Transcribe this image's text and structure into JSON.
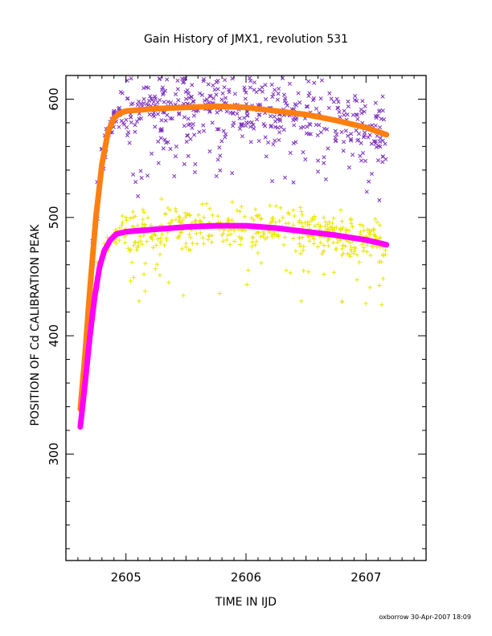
{
  "chart_data": {
    "type": "scatter",
    "title": "Gain History of JMX1, revolution 531",
    "xlabel": "TIME IN IJD",
    "ylabel": "POSITION OF Cd CALIBRATION PEAK",
    "xlim": [
      2604.5,
      2607.5
    ],
    "ylim": [
      210,
      620
    ],
    "xticks": [
      2605,
      2606,
      2607
    ],
    "yticks": [
      300,
      400,
      500,
      600
    ],
    "grid": false,
    "footer": "oxborrow 30-Apr-2007 18:09",
    "series": [
      {
        "marker": "x",
        "color": "#7b2fbe",
        "role": "measurements",
        "x_range": [
          2604.62,
          2607.17
        ],
        "plateau": 590,
        "spread": 14,
        "points": [
          [
            2604.64,
            362
          ],
          [
            2604.68,
            420
          ],
          [
            2604.72,
            480
          ],
          [
            2604.76,
            530
          ],
          [
            2604.8,
            558
          ],
          [
            2604.85,
            575
          ],
          [
            2604.9,
            588
          ],
          [
            2604.97,
            605
          ],
          [
            2605.02,
            572
          ],
          [
            2605.08,
            530
          ],
          [
            2605.1,
            518
          ],
          [
            2605.15,
            600
          ],
          [
            2605.3,
            608
          ],
          [
            2605.42,
            560
          ],
          [
            2605.55,
            612
          ],
          [
            2605.7,
            590
          ],
          [
            2605.82,
            610
          ],
          [
            2605.95,
            575
          ],
          [
            2606.1,
            595
          ],
          [
            2606.22,
            602
          ],
          [
            2606.4,
            578
          ],
          [
            2606.52,
            615
          ],
          [
            2606.6,
            548
          ],
          [
            2606.75,
            565
          ],
          [
            2606.85,
            598
          ],
          [
            2606.95,
            552
          ],
          [
            2607.05,
            578
          ],
          [
            2607.14,
            565
          ]
        ]
      },
      {
        "marker": "+",
        "color": "#e8e800",
        "role": "measurements",
        "x_range": [
          2604.62,
          2607.17
        ],
        "plateau": 490,
        "spread": 9,
        "points": [
          [
            2604.64,
            335
          ],
          [
            2604.68,
            385
          ],
          [
            2604.72,
            430
          ],
          [
            2604.76,
            462
          ],
          [
            2604.82,
            478
          ],
          [
            2604.9,
            486
          ],
          [
            2605.0,
            500
          ],
          [
            2605.05,
            462
          ],
          [
            2605.15,
            452
          ],
          [
            2605.35,
            508
          ],
          [
            2605.5,
            478
          ],
          [
            2605.65,
            500
          ],
          [
            2605.8,
            485
          ],
          [
            2605.95,
            505
          ],
          [
            2606.1,
            470
          ],
          [
            2606.2,
            510
          ],
          [
            2606.4,
            488
          ],
          [
            2606.52,
            454
          ],
          [
            2606.65,
            452
          ],
          [
            2606.8,
            468
          ],
          [
            2606.95,
            494
          ],
          [
            2607.05,
            480
          ],
          [
            2607.14,
            475
          ]
        ]
      },
      {
        "marker": "line",
        "color": "#ff7f11",
        "role": "fit",
        "points": [
          [
            2604.62,
            338
          ],
          [
            2604.66,
            385
          ],
          [
            2604.7,
            440
          ],
          [
            2604.75,
            500
          ],
          [
            2604.8,
            545
          ],
          [
            2604.85,
            572
          ],
          [
            2604.9,
            584
          ],
          [
            2604.95,
            588
          ],
          [
            2605.0,
            590
          ],
          [
            2605.25,
            592
          ],
          [
            2605.5,
            593
          ],
          [
            2605.75,
            594
          ],
          [
            2606.0,
            593
          ],
          [
            2606.25,
            590
          ],
          [
            2606.5,
            587
          ],
          [
            2606.75,
            582
          ],
          [
            2607.0,
            576
          ],
          [
            2607.17,
            570
          ]
        ]
      },
      {
        "marker": "line",
        "color": "#ff00ff",
        "role": "fit",
        "points": [
          [
            2604.62,
            323
          ],
          [
            2604.66,
            360
          ],
          [
            2604.7,
            400
          ],
          [
            2604.74,
            433
          ],
          [
            2604.78,
            458
          ],
          [
            2604.82,
            472
          ],
          [
            2604.87,
            481
          ],
          [
            2604.92,
            486
          ],
          [
            2605.0,
            488
          ],
          [
            2605.25,
            490
          ],
          [
            2605.5,
            492
          ],
          [
            2605.75,
            493
          ],
          [
            2606.0,
            493
          ],
          [
            2606.25,
            491
          ],
          [
            2606.5,
            488
          ],
          [
            2606.75,
            485
          ],
          [
            2607.0,
            481
          ],
          [
            2607.17,
            477
          ]
        ]
      }
    ]
  }
}
